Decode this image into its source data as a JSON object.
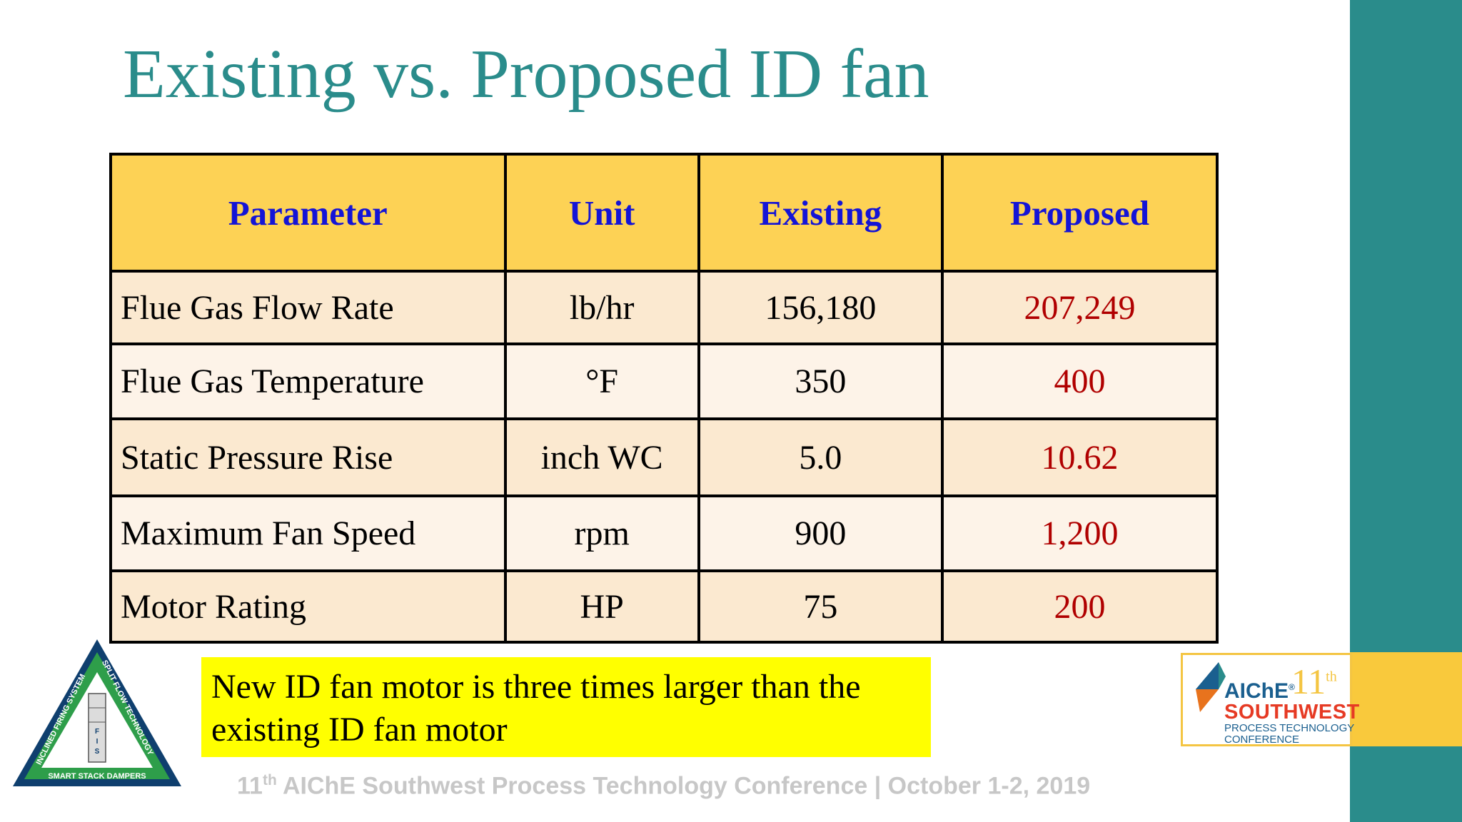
{
  "slide": {
    "title": "Existing vs. Proposed ID fan",
    "table": {
      "headers": [
        "Parameter",
        "Unit",
        "Existing",
        "Proposed"
      ],
      "rows": [
        {
          "parameter": "Flue Gas Flow Rate",
          "unit": "lb/hr",
          "existing": "156,180",
          "proposed": "207,249"
        },
        {
          "parameter": "Flue Gas Temperature",
          "unit": "°F",
          "existing": "350",
          "proposed": "400"
        },
        {
          "parameter": "Static Pressure Rise",
          "unit": "inch WC",
          "existing": "5.0",
          "proposed": "10.62"
        },
        {
          "parameter": "Maximum Fan Speed",
          "unit": "rpm",
          "existing": "900",
          "proposed": "1,200"
        },
        {
          "parameter": "Motor Rating",
          "unit": "HP",
          "existing": "75",
          "proposed": "200"
        }
      ]
    },
    "note": "New ID fan motor is three times larger than the existing ID fan motor",
    "footer": {
      "number": "11",
      "ordinal": "th",
      "rest": " AIChE Southwest Process Technology Conference | October 1-2, 2019"
    },
    "fis_logo": {
      "left_text": "INCLINED FIRING SYSTEM",
      "right_text": "SPLIT FLOW TECHNOLOGY",
      "bottom_text": "SMART STACK DAMPERS",
      "letters": [
        "F",
        "I",
        "S"
      ]
    },
    "aiche_logo": {
      "brand": "AIChE",
      "registered": "®",
      "number": "11",
      "ordinal": "th",
      "region": "SOUTHWEST",
      "line1": "PROCESS TECHNOLOGY",
      "line2": "CONFERENCE"
    }
  },
  "colors": {
    "title": "#2a8c8b",
    "teal_band": "#2a8c8b",
    "gold": "#f9c93c",
    "header_fill": "#fdd255",
    "header_text": "#1414d6",
    "proposed_text": "#b00000",
    "note_fill": "#ffff00",
    "footer_text": "#c7c7c7"
  }
}
